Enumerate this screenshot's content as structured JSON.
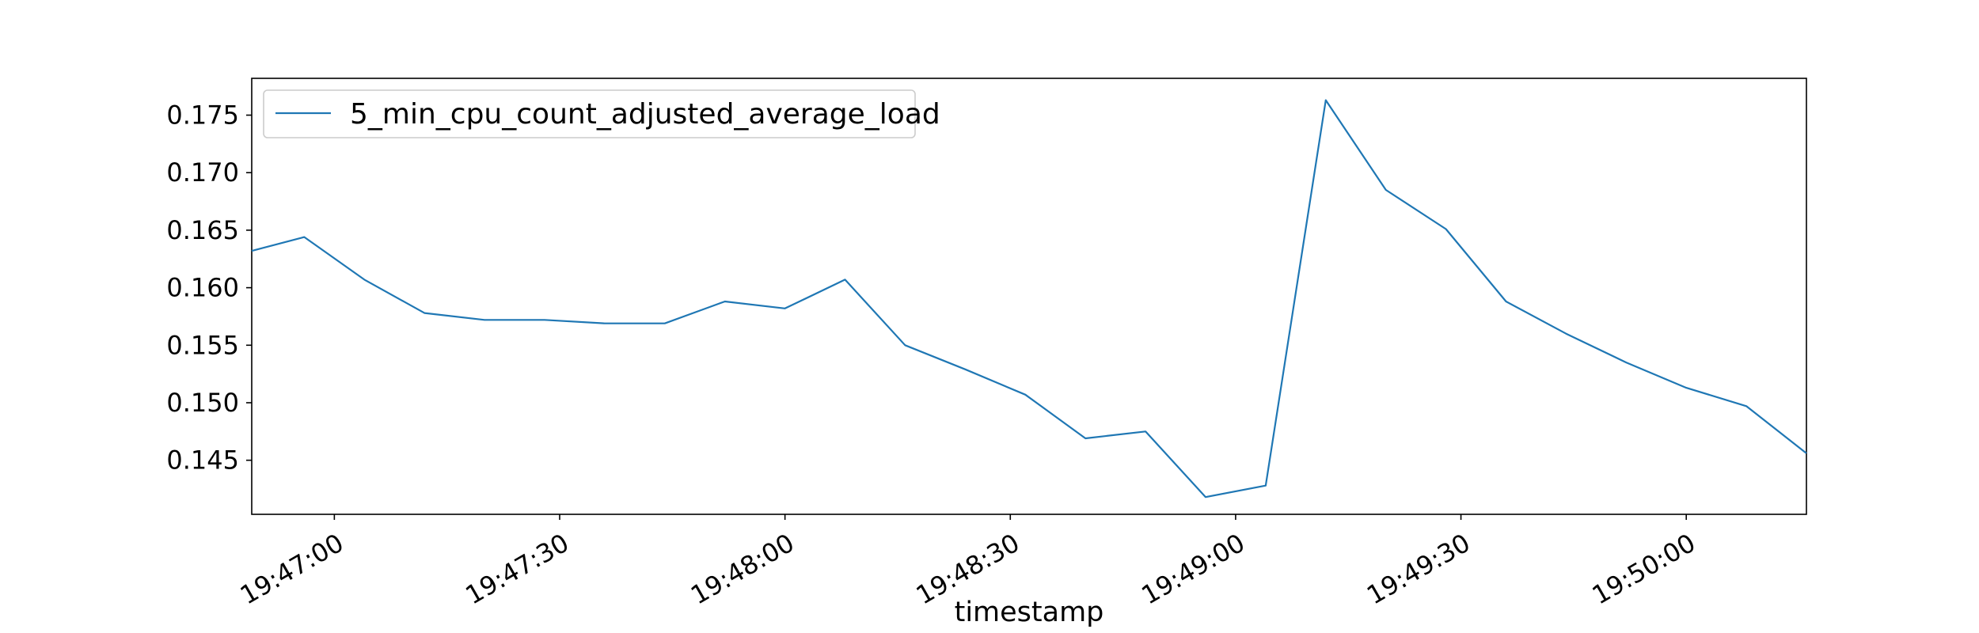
{
  "chart_data": {
    "type": "line",
    "title": "",
    "xlabel": "timestamp",
    "ylabel": "",
    "grid": false,
    "legend_position": "top-left",
    "x_unit": "seconds since 19:47:00",
    "xlim": [
      -11,
      196
    ],
    "ylim": [
      0.1403,
      0.1782
    ],
    "x_ticks": [
      0,
      30,
      60,
      90,
      120,
      150,
      180
    ],
    "x_tick_labels": [
      "19:47:00",
      "19:47:30",
      "19:48:00",
      "19:48:30",
      "19:49:00",
      "19:49:30",
      "19:50:00"
    ],
    "y_ticks": [
      0.145,
      0.15,
      0.155,
      0.16,
      0.165,
      0.17,
      0.175
    ],
    "y_tick_labels": [
      "0.145",
      "0.150",
      "0.155",
      "0.160",
      "0.165",
      "0.170",
      "0.175"
    ],
    "series": [
      {
        "name": "5_min_cpu_count_adjusted_average_load",
        "color": "#1f77b4",
        "x": [
          -11,
          -4,
          4,
          12,
          20,
          28,
          36,
          44,
          52,
          60,
          68,
          76,
          84,
          92,
          100,
          108,
          116,
          124,
          132,
          140,
          148,
          156,
          164,
          172,
          180,
          188,
          196
        ],
        "y": [
          0.1632,
          0.1644,
          0.1607,
          0.1578,
          0.1572,
          0.1572,
          0.1569,
          0.1569,
          0.1588,
          0.1582,
          0.1607,
          0.155,
          0.1529,
          0.1507,
          0.1469,
          0.1475,
          0.1418,
          0.1428,
          0.1763,
          0.1685,
          0.1651,
          0.1588,
          0.156,
          0.1535,
          0.1513,
          0.1497,
          0.1456
        ]
      }
    ]
  }
}
